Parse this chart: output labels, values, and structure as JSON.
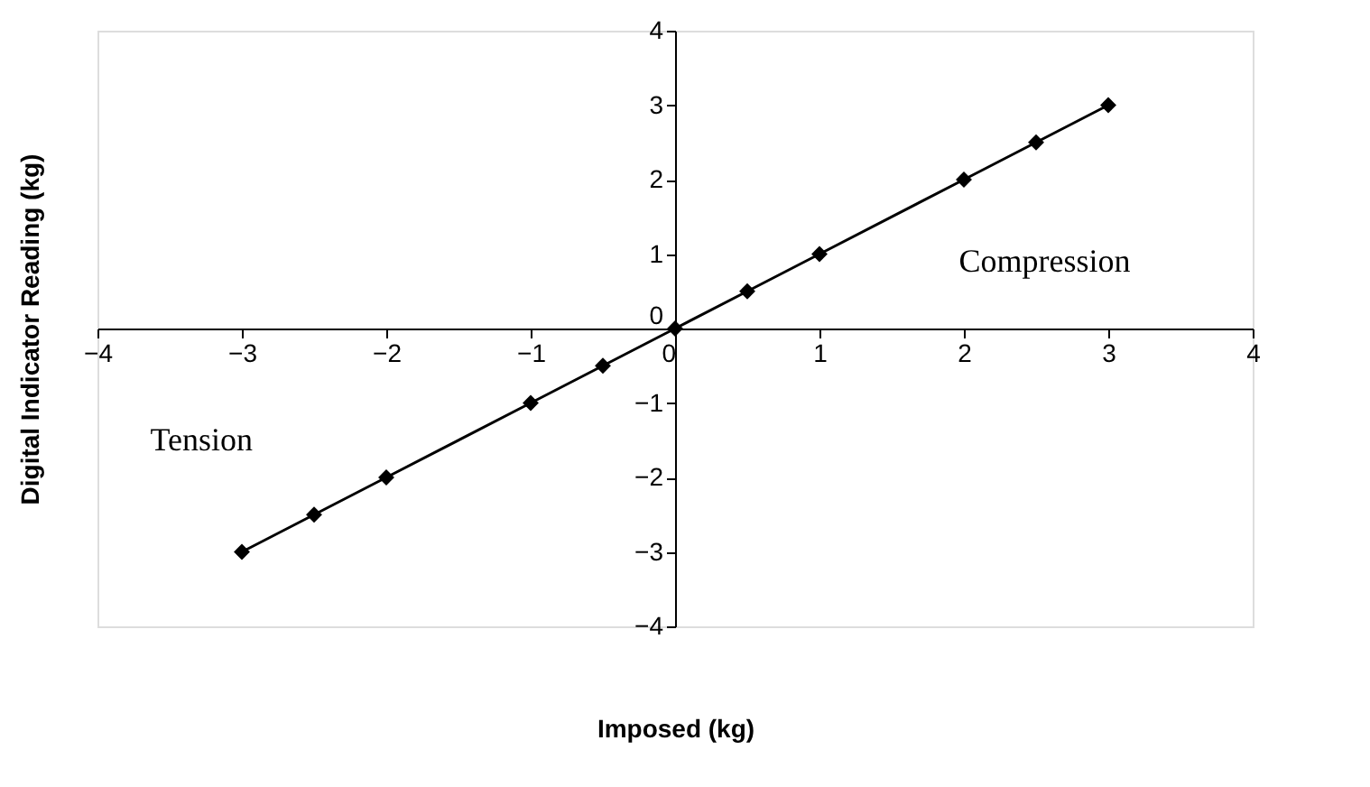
{
  "chart_data": {
    "type": "line",
    "xlabel": "Imposed (kg)",
    "ylabel": "Digital Indicator Reading (kg)",
    "x": [
      -3,
      -2.5,
      -2,
      -1,
      -0.5,
      0,
      0.5,
      1,
      2,
      2.5,
      3
    ],
    "series": [
      {
        "color": "#000000",
        "values": [
          -3,
          -2.5,
          -2,
          -1,
          -0.5,
          0,
          0.5,
          1,
          2,
          2.5,
          3
        ]
      }
    ],
    "marker": "diamond",
    "line_style": "solid",
    "xlim": [
      -4,
      4
    ],
    "ylim": [
      -4,
      4
    ],
    "xticks": [
      -4,
      -3,
      -2,
      -1,
      0,
      1,
      2,
      3,
      4
    ],
    "yticks": [
      -4,
      -3,
      -2,
      -1,
      0,
      1,
      2,
      3,
      4
    ],
    "grid": false,
    "annotations": [
      "Tension",
      "Compression"
    ]
  }
}
